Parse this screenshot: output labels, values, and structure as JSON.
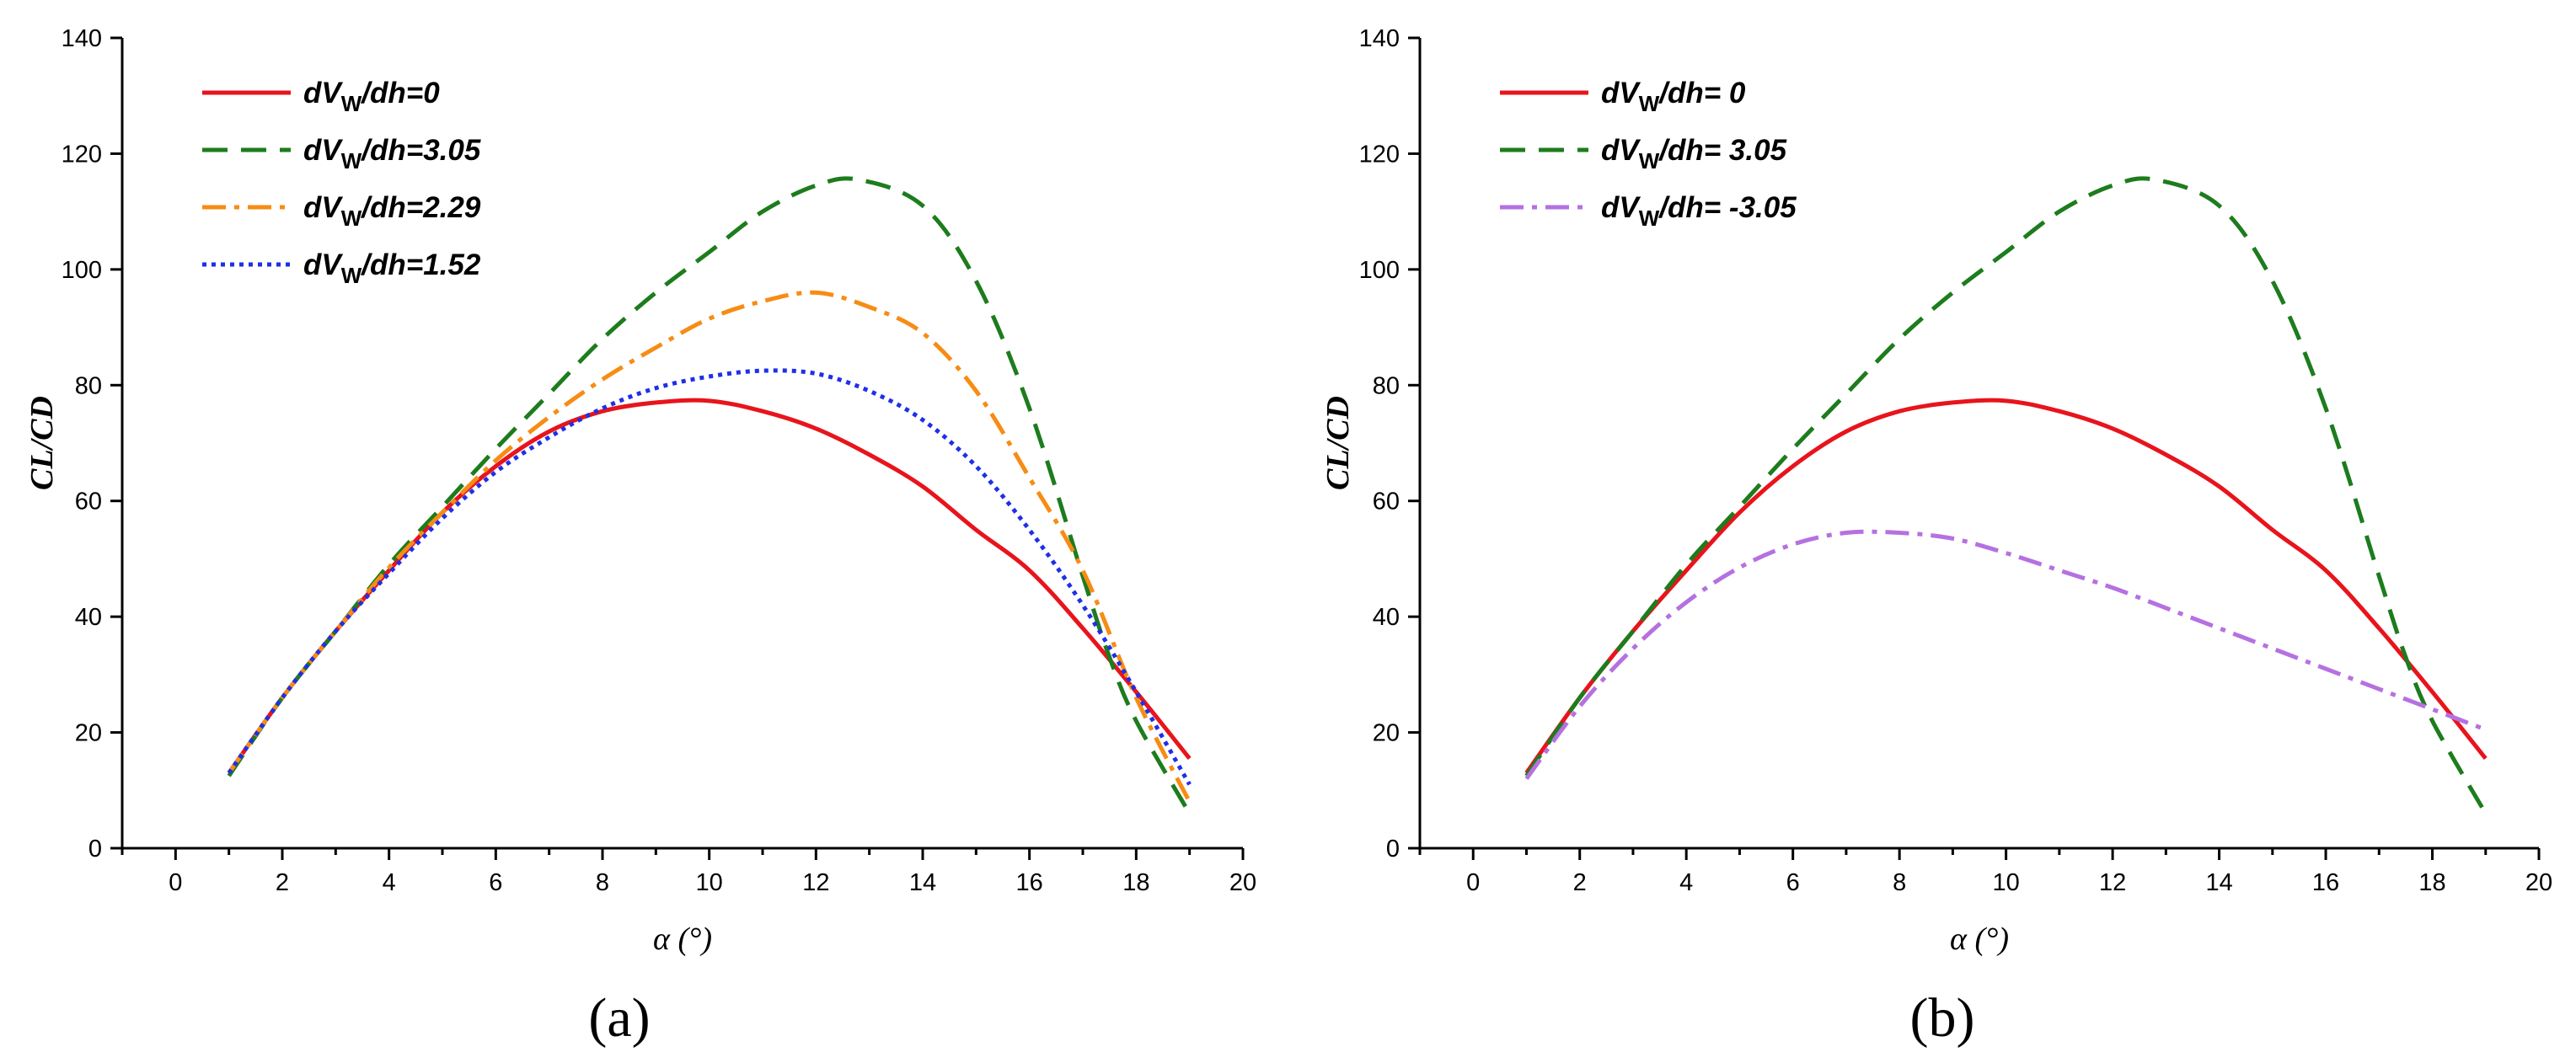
{
  "chart_data": [
    {
      "type": "line",
      "panel_label": "(a)",
      "xlabel": "α (°)",
      "ylabel": "CL/CD",
      "xlim": [
        -1,
        20
      ],
      "ylim": [
        0,
        140
      ],
      "xticks": [
        0,
        2,
        4,
        6,
        8,
        10,
        12,
        14,
        16,
        18,
        20
      ],
      "yticks": [
        0,
        20,
        40,
        60,
        80,
        100,
        120,
        140
      ],
      "legend_position": "top-left",
      "series": [
        {
          "name": "dVW/dh=0",
          "label_var": "dV",
          "label_sub": "W",
          "label_rest": "/dh=0",
          "color": "#e8141c",
          "dash": "",
          "x": [
            1,
            2,
            3,
            4,
            5,
            6,
            7,
            8,
            9,
            10,
            11,
            12,
            13,
            14,
            15,
            16,
            17,
            18,
            19
          ],
          "y": [
            13,
            26,
            37.5,
            48,
            58,
            66,
            72,
            75.5,
            77,
            77.3,
            75.5,
            72.5,
            68,
            62.5,
            55,
            48,
            38,
            27,
            15.5
          ]
        },
        {
          "name": "dVW/dh=3.05",
          "label_var": "dV",
          "label_sub": "W",
          "label_rest": "/dh=3.05",
          "color": "#1d7c1d",
          "dash": "30,16",
          "x": [
            1,
            2,
            3,
            4,
            5,
            6,
            7,
            8,
            9,
            10,
            11,
            12,
            12.8,
            14,
            15,
            16,
            17,
            17.5,
            18,
            19
          ],
          "y": [
            12.5,
            26,
            37.5,
            49,
            59,
            69,
            78.5,
            88,
            96,
            103,
            110,
            114.5,
            115.5,
            111,
            98,
            76,
            47,
            33,
            22,
            6
          ]
        },
        {
          "name": "dVW/dh=2.29",
          "label_var": "dV",
          "label_sub": "W",
          "label_rest": "/dh=2.29",
          "color": "#f78c14",
          "dash": "28,10,6,10",
          "x": [
            1,
            2,
            3,
            4,
            5,
            6,
            7,
            8,
            9,
            10,
            11,
            12,
            13,
            14,
            15,
            16,
            17,
            18,
            19
          ],
          "y": [
            13,
            26,
            37.5,
            48.5,
            58,
            67,
            74.5,
            81,
            86.5,
            91.5,
            94.5,
            96,
            93.5,
            89,
            79,
            64,
            48,
            26,
            8
          ]
        },
        {
          "name": "dVW/dh=1.52",
          "label_var": "dV",
          "label_sub": "W",
          "label_rest": "/dh=1.52",
          "color": "#1f2fe8",
          "dash": "5,6",
          "x": [
            1,
            2,
            3,
            4,
            5,
            6,
            7,
            8,
            9,
            10,
            11,
            12,
            13,
            14,
            15,
            16,
            17,
            18,
            19
          ],
          "y": [
            13,
            26,
            37.5,
            47.5,
            57,
            65,
            71,
            76,
            79.5,
            81.5,
            82.5,
            82,
            79,
            74,
            66,
            55,
            42,
            27,
            11
          ]
        }
      ]
    },
    {
      "type": "line",
      "panel_label": "(b)",
      "xlabel": "α (°)",
      "ylabel": "CL/CD",
      "xlim": [
        -1,
        20
      ],
      "ylim": [
        0,
        140
      ],
      "xticks": [
        0,
        2,
        4,
        6,
        8,
        10,
        12,
        14,
        16,
        18,
        20
      ],
      "yticks": [
        0,
        20,
        40,
        60,
        80,
        100,
        120,
        140
      ],
      "legend_position": "top-left",
      "series": [
        {
          "name": "dVW/dh= 0",
          "label_var": "dV",
          "label_sub": "W",
          "label_rest": "/dh=  0",
          "color": "#e8141c",
          "dash": "",
          "x": [
            1,
            2,
            3,
            4,
            5,
            6,
            7,
            8,
            9,
            10,
            11,
            12,
            13,
            14,
            15,
            16,
            17,
            18,
            19
          ],
          "y": [
            13,
            26,
            37.5,
            48,
            58,
            66,
            72,
            75.5,
            77,
            77.3,
            75.5,
            72.5,
            68,
            62.5,
            55,
            48,
            38,
            27,
            15.5
          ]
        },
        {
          "name": "dVW/dh= 3.05",
          "label_var": "dV",
          "label_sub": "W",
          "label_rest": "/dh=  3.05",
          "color": "#1d7c1d",
          "dash": "30,16",
          "x": [
            1,
            2,
            3,
            4,
            5,
            6,
            7,
            8,
            9,
            10,
            11,
            12,
            12.8,
            14,
            15,
            16,
            17,
            17.5,
            18,
            19
          ],
          "y": [
            12.5,
            26,
            37.5,
            49,
            59,
            69,
            78.5,
            88,
            96,
            103,
            110,
            114.5,
            115.5,
            111,
            98,
            76,
            47,
            33,
            22,
            6
          ]
        },
        {
          "name": "dVW/dh= -3.05",
          "label_var": "dV",
          "label_sub": "W",
          "label_rest": "/dh= -3.05",
          "color": "#b571e0",
          "dash": "28,10,6,10",
          "x": [
            1,
            2,
            3,
            4,
            5,
            6,
            7,
            8,
            9,
            10,
            11,
            12,
            13,
            14,
            15,
            16,
            17,
            18,
            19
          ],
          "y": [
            12,
            24.5,
            34.5,
            42.5,
            48.5,
            52.5,
            54.5,
            54.5,
            53.5,
            51,
            48,
            45,
            41.5,
            38,
            34.5,
            31,
            27.5,
            24,
            20.5
          ]
        }
      ]
    }
  ]
}
